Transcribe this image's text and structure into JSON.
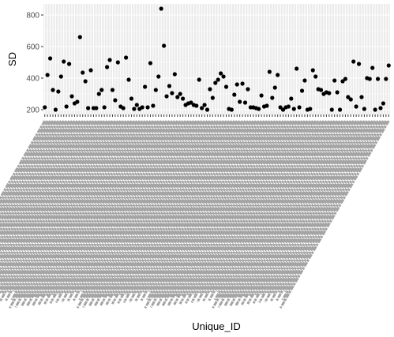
{
  "chart_data": {
    "type": "scatter",
    "xlabel": "Unique_ID",
    "ylabel": "SD",
    "ylim": [
      170,
      870
    ],
    "yticks": [
      200,
      400,
      600,
      800
    ],
    "grid": true,
    "panel_color": "#ebebeb",
    "grid_color": "#ffffff",
    "point_color": "#000000",
    "x_tick_labels_legible": false,
    "series": [
      {
        "values": [
          215,
          420,
          525,
          325,
          200,
          315,
          410,
          505,
          220,
          490,
          285,
          240,
          250,
          660,
          435,
          380,
          210,
          450,
          210,
          210,
          300,
          325,
          215,
          470,
          515,
          325,
          260,
          500,
          220,
          210,
          530,
          390,
          270,
          205,
          230,
          205,
          215,
          345,
          215,
          495,
          225,
          325,
          410,
          840,
          605,
          285,
          350,
          305,
          425,
          280,
          300,
          270,
          230,
          240,
          245,
          230,
          225,
          390,
          210,
          230,
          200,
          330,
          275,
          370,
          390,
          430,
          410,
          345,
          205,
          200,
          295,
          360,
          250,
          365,
          245,
          330,
          215,
          215,
          210,
          205,
          290,
          220,
          225,
          440,
          275,
          340,
          420,
          215,
          200,
          215,
          220,
          270,
          205,
          460,
          215,
          320,
          385,
          200,
          205,
          450,
          410,
          330,
          325,
          300,
          310,
          305,
          200,
          385,
          310,
          200,
          380,
          395,
          280,
          265,
          505,
          220,
          490,
          280,
          205,
          400,
          395,
          465,
          200,
          395,
          210,
          240,
          395,
          480
        ]
      }
    ]
  }
}
